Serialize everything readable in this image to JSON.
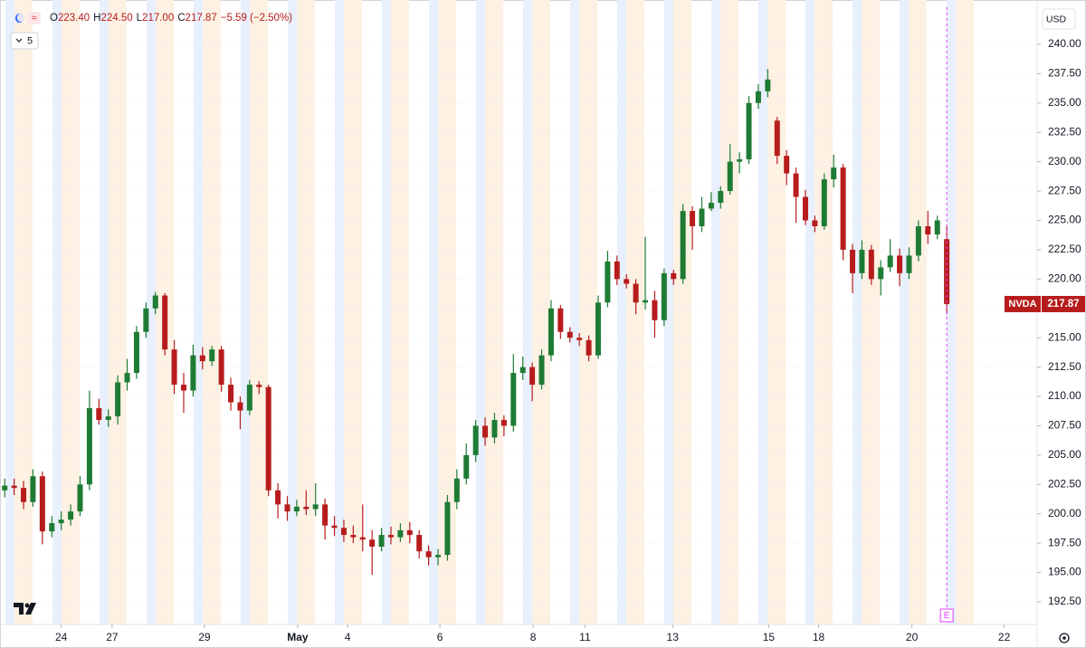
{
  "chart_data": {
    "type": "candlestick",
    "symbol": "NVDA",
    "currency": "USD",
    "interval": "5",
    "legend_items": [
      {
        "key": "O",
        "value": "223.40"
      },
      {
        "key": "H",
        "value": "224.50"
      },
      {
        "key": "L",
        "value": "217.00"
      },
      {
        "key": "C",
        "value": "217.87"
      }
    ],
    "change_text": "−5.59 (−2.50%)",
    "last_price_label": "217.87",
    "event_marker": "E",
    "up_color": "#1e7b34",
    "down_color": "#b71c1c",
    "grid": true,
    "xlim": [
      0,
      110
    ],
    "xticks": [
      {
        "value": 6.5,
        "label": "24"
      },
      {
        "value": 11.9,
        "label": "27"
      },
      {
        "value": 21.7,
        "label": "29"
      },
      {
        "value": 31.6,
        "label": "May"
      },
      {
        "value": 36.9,
        "label": "4"
      },
      {
        "value": 46.7,
        "label": "6"
      },
      {
        "value": 56.6,
        "label": "8"
      },
      {
        "value": 62.1,
        "label": "11"
      },
      {
        "value": 71.4,
        "label": "13"
      },
      {
        "value": 81.6,
        "label": "15"
      },
      {
        "value": 86.9,
        "label": "18"
      },
      {
        "value": 96.8,
        "label": "20"
      },
      {
        "value": 106.6,
        "label": "22"
      }
    ],
    "ylim": [
      190.57,
      243.16
    ],
    "yticks": [
      {
        "value": 192.5,
        "label": "192.50"
      },
      {
        "value": 195,
        "label": "195.00"
      },
      {
        "value": 197.5,
        "label": "197.50"
      },
      {
        "value": 200,
        "label": "200.00"
      },
      {
        "value": 202.5,
        "label": "202.50"
      },
      {
        "value": 205,
        "label": "205.00"
      },
      {
        "value": 207.5,
        "label": "207.50"
      },
      {
        "value": 210,
        "label": "210.00"
      },
      {
        "value": 212.5,
        "label": "212.50"
      },
      {
        "value": 215,
        "label": "215.00"
      },
      {
        "value": 217.5,
        "label": "217.50"
      },
      {
        "value": 220,
        "label": "220.00"
      },
      {
        "value": 222.5,
        "label": "222.50"
      },
      {
        "value": 225,
        "label": "225.00"
      },
      {
        "value": 227.5,
        "label": "227.50"
      },
      {
        "value": 230,
        "label": "230.00"
      },
      {
        "value": 232.5,
        "label": "232.50"
      },
      {
        "value": 235,
        "label": "235.00"
      },
      {
        "value": 237.5,
        "label": "237.50"
      },
      {
        "value": 240,
        "label": "240.00"
      }
    ],
    "open": [
      202.0,
      202.4,
      202.2,
      201.0,
      203.2,
      198.5,
      199.2,
      199.5,
      200.2,
      202.5,
      209.0,
      208.0,
      208.3,
      211.2,
      212.0,
      215.5,
      217.5,
      218.6,
      214.0,
      211.0,
      210.5,
      213.5,
      213.0,
      214.0,
      211.0,
      209.5,
      208.8,
      211.0,
      210.8,
      202.0,
      200.8,
      200.2,
      200.6,
      200.4,
      200.8,
      199.0,
      198.8,
      198.2,
      198.0,
      197.8,
      197.2,
      198.2,
      198.0,
      198.6,
      198.2,
      196.8,
      196.3,
      196.5,
      201.0,
      203.0,
      205.0,
      207.5,
      206.5,
      208.0,
      207.5,
      212.0,
      212.5,
      211.0,
      213.5,
      217.5,
      215.5,
      215.0,
      214.8,
      213.5,
      218.0,
      221.5,
      220.0,
      219.6,
      218.0,
      218.2,
      216.5,
      220.5,
      220.0,
      225.8,
      224.5,
      226.0,
      226.5,
      227.5,
      230.0,
      230.2,
      235.0,
      236.0,
      233.5,
      230.5,
      229.0,
      227.0,
      225.0,
      224.5,
      228.5,
      229.5,
      222.5,
      220.5,
      222.5,
      220.0,
      221.0,
      222.0,
      220.5,
      222.0,
      224.5,
      223.8,
      223.4
    ],
    "high": [
      203.0,
      203.0,
      202.8,
      203.8,
      203.6,
      199.8,
      200.2,
      200.8,
      203.2,
      210.5,
      209.8,
      208.9,
      211.8,
      213.2,
      216.0,
      218.0,
      218.9,
      218.8,
      214.8,
      212.0,
      214.4,
      214.2,
      214.3,
      214.3,
      211.6,
      210.0,
      211.4,
      211.3,
      211.0,
      202.6,
      201.5,
      201.2,
      202.0,
      202.6,
      201.3,
      199.8,
      199.5,
      199.0,
      200.8,
      198.6,
      198.8,
      198.9,
      199.2,
      199.3,
      198.6,
      197.3,
      197.0,
      201.6,
      203.8,
      206.0,
      208.0,
      208.2,
      208.6,
      208.4,
      213.6,
      213.4,
      212.9,
      214.0,
      218.2,
      217.8,
      215.9,
      215.4,
      215.2,
      218.6,
      222.4,
      222.0,
      220.4,
      220.0,
      223.6,
      219.0,
      220.9,
      220.8,
      226.4,
      226.2,
      227.0,
      227.4,
      227.9,
      231.5,
      230.8,
      235.6,
      236.6,
      237.9,
      233.8,
      231.0,
      229.5,
      227.6,
      225.4,
      229.0,
      230.6,
      229.8,
      223.0,
      223.3,
      222.9,
      221.6,
      223.4,
      222.6,
      222.7,
      225.0,
      225.8,
      225.4,
      224.5
    ],
    "low": [
      201.4,
      201.6,
      200.4,
      200.6,
      197.4,
      198.0,
      198.6,
      199.0,
      199.8,
      202.0,
      207.6,
      207.4,
      207.6,
      210.5,
      211.5,
      215.0,
      217.0,
      213.5,
      210.2,
      208.6,
      210.0,
      212.3,
      212.6,
      210.4,
      208.8,
      207.2,
      208.4,
      210.2,
      201.5,
      199.6,
      199.4,
      199.8,
      199.9,
      199.8,
      197.8,
      198.1,
      197.6,
      197.5,
      196.8,
      194.8,
      196.8,
      197.4,
      197.6,
      197.5,
      196.2,
      195.6,
      195.6,
      196.0,
      200.4,
      202.5,
      204.4,
      205.8,
      206.0,
      206.6,
      207.0,
      211.4,
      209.6,
      210.6,
      213.0,
      214.9,
      214.6,
      214.3,
      213.0,
      213.2,
      217.6,
      219.5,
      219.2,
      217.0,
      217.4,
      215.0,
      216.0,
      219.5,
      219.6,
      222.5,
      224.0,
      225.8,
      226.0,
      227.2,
      229.0,
      229.8,
      234.5,
      235.5,
      229.8,
      228.0,
      224.8,
      224.6,
      224.0,
      224.2,
      227.8,
      221.6,
      218.8,
      220.0,
      219.5,
      218.6,
      220.6,
      219.4,
      220.0,
      221.5,
      223.0,
      223.4,
      217.0
    ],
    "close": [
      202.4,
      202.2,
      201.0,
      203.2,
      198.5,
      199.2,
      199.5,
      200.2,
      202.5,
      209.0,
      208.0,
      208.3,
      211.2,
      212.0,
      215.5,
      217.5,
      218.6,
      214.0,
      211.0,
      210.5,
      213.5,
      213.0,
      214.0,
      211.0,
      209.5,
      208.8,
      211.0,
      210.8,
      202.0,
      200.8,
      200.2,
      200.6,
      200.4,
      200.8,
      199.0,
      198.8,
      198.2,
      198.0,
      197.8,
      197.2,
      198.2,
      198.0,
      198.6,
      198.2,
      196.8,
      196.3,
      196.5,
      201.0,
      203.0,
      205.0,
      207.5,
      206.5,
      208.0,
      207.5,
      212.0,
      212.5,
      211.0,
      213.5,
      217.5,
      215.5,
      215.0,
      214.8,
      213.5,
      218.0,
      221.5,
      220.0,
      219.6,
      218.0,
      218.2,
      216.5,
      220.5,
      220.0,
      225.8,
      224.5,
      226.0,
      226.5,
      227.5,
      230.0,
      230.2,
      235.0,
      236.0,
      237.0,
      230.5,
      229.0,
      227.0,
      225.0,
      224.5,
      228.5,
      229.5,
      222.5,
      220.5,
      222.5,
      220.0,
      221.0,
      222.0,
      220.5,
      222.0,
      224.5,
      223.8,
      225.0,
      217.87
    ]
  }
}
